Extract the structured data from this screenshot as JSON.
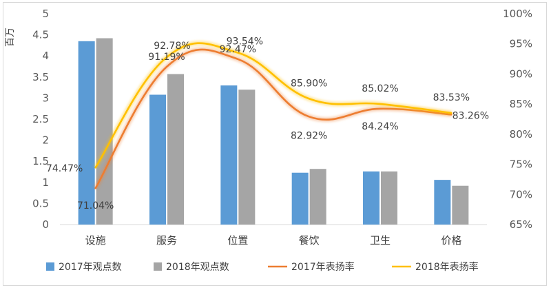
{
  "chart_data": {
    "type": "bar",
    "categories": [
      "设施",
      "服务",
      "位置",
      "餐饮",
      "卫生",
      "价格"
    ],
    "y_left": {
      "label": "百万",
      "ylim": [
        0,
        5
      ],
      "ticks": [
        "0",
        "0.5",
        "1",
        "1.5",
        "2",
        "2.5",
        "3",
        "3.5",
        "4",
        "4.5",
        "5"
      ]
    },
    "y_right": {
      "ylim": [
        65,
        100
      ],
      "ticks": [
        "65%",
        "70%",
        "75%",
        "80%",
        "85%",
        "90%",
        "95%",
        "100%"
      ]
    },
    "bar_series": [
      {
        "name": "2017年观点数",
        "color": "#5b9bd5",
        "values": [
          4.35,
          3.08,
          3.3,
          1.23,
          1.26,
          1.06
        ]
      },
      {
        "name": "2018年观点数",
        "color": "#a5a5a5",
        "values": [
          4.42,
          3.57,
          3.2,
          1.32,
          1.26,
          0.92
        ]
      }
    ],
    "line_series": [
      {
        "name": "2017年表扬率",
        "color": "#ed7d31",
        "values": [
          71.04,
          91.19,
          92.47,
          82.92,
          84.24,
          83.26
        ],
        "labels": [
          "71.04%",
          "91.19%",
          "92.47%",
          "82.92%",
          "84.24%",
          "83.26%"
        ]
      },
      {
        "name": "2018年表扬率",
        "color": "#ffc000",
        "values": [
          74.47,
          92.78,
          93.54,
          85.9,
          85.02,
          83.53
        ],
        "labels": [
          "74.47%",
          "92.78%",
          "93.54%",
          "85.90%",
          "85.02%",
          "83.53%"
        ]
      }
    ],
    "grid": false,
    "legend_position": "bottom"
  }
}
